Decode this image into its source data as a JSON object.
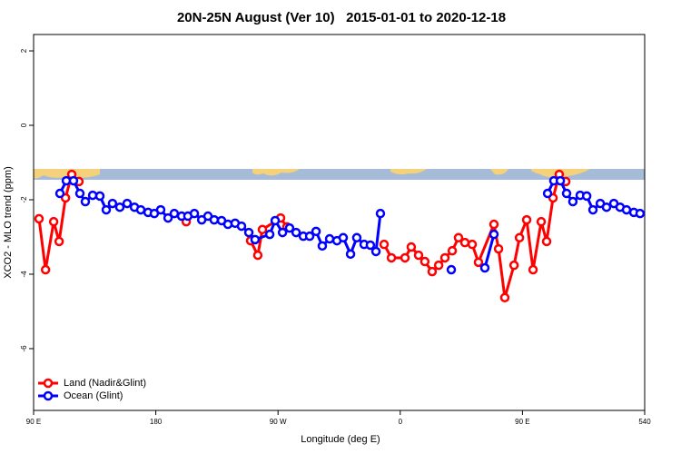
{
  "chart_data": {
    "type": "line",
    "title": "20N-25N August (Ver 10)   2015-01-01 to 2020-12-18",
    "xlabel": "Longitude (deg E)",
    "ylabel": "XCO2 - MLO trend (ppm)",
    "xlim": [
      90,
      540
    ],
    "ylim": [
      -7.66,
      2.44
    ],
    "xticks": [
      {
        "value": 90,
        "label": "90 E"
      },
      180,
      {
        "value": 270,
        "label": "90 W"
      },
      {
        "value": 360,
        "label": "0"
      },
      {
        "value": 450,
        "label": "90 E"
      },
      540
    ],
    "yticks": [
      -6,
      -4,
      -2,
      0,
      2
    ],
    "legend": "bottom-left",
    "series": [
      {
        "name": "Land (Nadir&Glint)",
        "color": "#ff0000",
        "x": [
          94.0,
          98.8,
          104.8,
          108.8,
          113.5,
          118.1,
          123.4,
          null,
          202.4,
          null,
          249.8,
          255.1,
          258.5,
          271.9,
          276.5,
          null,
          348.1,
          353.5,
          363.5,
          368.1,
          373.5,
          378.1,
          383.5,
          388.3,
          392.9,
          398.3,
          402.9,
          407.6,
          413.0,
          417.6,
          429.0,
          432.4,
          437.0,
          443.8,
          447.8,
          453.1,
          457.8,
          463.8,
          467.8,
          472.5,
          477.1,
          481.9
        ],
        "values": [
          -2.51,
          -3.88,
          -2.59,
          -3.12,
          -1.95,
          -1.32,
          -1.51,
          null,
          -2.59,
          null,
          -3.1,
          -3.49,
          -2.8,
          -2.49,
          -2.73,
          null,
          -3.2,
          -3.56,
          -3.56,
          -3.27,
          -3.49,
          -3.66,
          -3.93,
          -3.76,
          -3.56,
          -3.37,
          -3.02,
          -3.15,
          -3.2,
          -3.68,
          -2.66,
          -3.32,
          -4.63,
          -3.76,
          -3.02,
          -2.54,
          -3.88,
          -2.59,
          -3.12,
          -1.95,
          -1.32,
          -1.51
        ]
      },
      {
        "name": "Ocean (Glint)",
        "color": "#0000ff",
        "x": [
          109.4,
          114.1,
          119.4,
          124.1,
          128.1,
          133.5,
          138.8,
          143.5,
          148.1,
          153.5,
          158.9,
          164.3,
          168.9,
          174.3,
          178.9,
          183.6,
          189.0,
          193.6,
          199.0,
          203.6,
          208.4,
          213.8,
          218.4,
          223.0,
          228.4,
          233.1,
          238.4,
          243.1,
          248.5,
          253.1,
          263.9,
          267.9,
          273.3,
          278.5,
          283.3,
          288.6,
          293.3,
          298.0,
          302.6,
          308.0,
          313.4,
          318.0,
          323.4,
          328.0,
          333.4,
          338.0,
          342.1,
          345.4,
          null,
          397.6,
          null,
          422.3,
          429.0,
          null,
          468.5,
          473.1,
          477.9,
          482.5,
          487.1,
          492.5,
          497.3,
          501.9,
          507.3,
          511.9,
          517.3,
          521.9,
          526.6,
          532.0,
          536.6
        ],
        "values": [
          -1.83,
          -1.49,
          -1.49,
          -1.83,
          -2.05,
          -1.88,
          -1.9,
          -2.27,
          -2.1,
          -2.2,
          -2.1,
          -2.2,
          -2.27,
          -2.34,
          -2.37,
          -2.27,
          -2.49,
          -2.37,
          -2.44,
          -2.44,
          -2.37,
          -2.54,
          -2.44,
          -2.54,
          -2.56,
          -2.66,
          -2.63,
          -2.71,
          -2.88,
          -3.07,
          -2.93,
          -2.56,
          -2.88,
          -2.76,
          -2.88,
          -2.98,
          -2.98,
          -2.85,
          -3.24,
          -3.05,
          -3.1,
          -3.02,
          -3.46,
          -3.02,
          -3.2,
          -3.22,
          -3.39,
          -2.37,
          null,
          -3.88,
          null,
          -3.83,
          -2.93,
          null,
          -1.83,
          -1.49,
          -1.49,
          -1.83,
          -2.05,
          -1.88,
          -1.9,
          -2.27,
          -2.1,
          -2.2,
          -2.1,
          -2.2,
          -2.27,
          -2.34,
          -2.37
        ]
      }
    ]
  }
}
